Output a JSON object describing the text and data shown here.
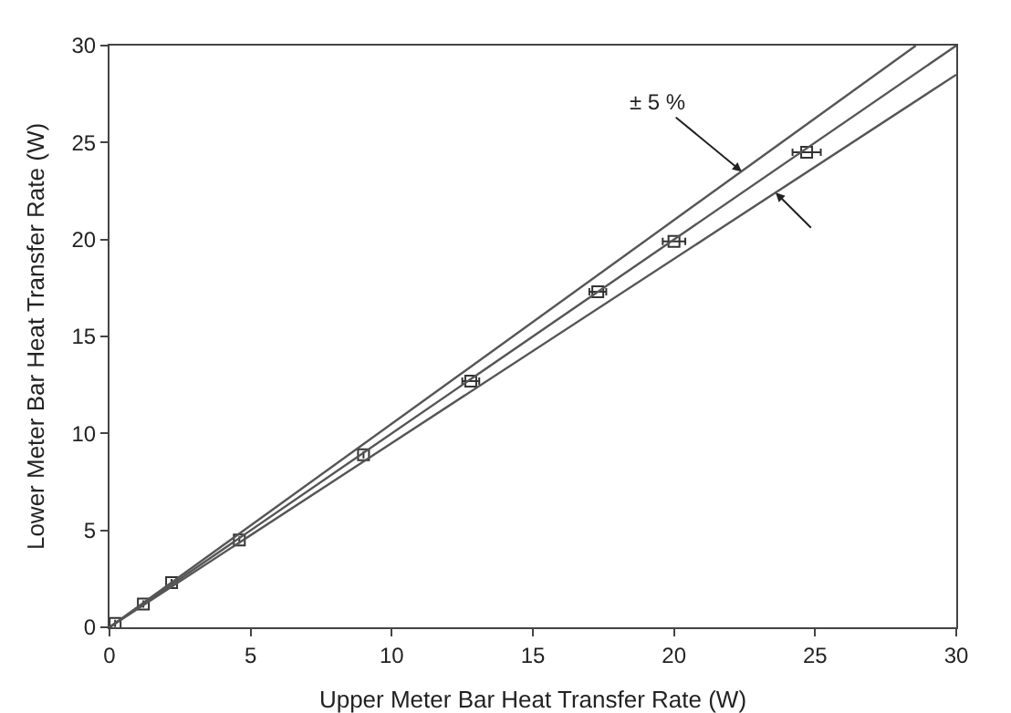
{
  "chart_data": {
    "type": "scatter",
    "xlabel": "Upper Meter Bar Heat Transfer Rate (W)",
    "ylabel": "Lower Meter Bar Heat Transfer Rate (W)",
    "xlim": [
      0,
      30
    ],
    "ylim": [
      0,
      30
    ],
    "xticks": [
      0,
      5,
      10,
      15,
      20,
      25,
      30
    ],
    "yticks": [
      0,
      5,
      10,
      15,
      20,
      25,
      30
    ],
    "grid": false,
    "legend": false,
    "series": [
      {
        "marker": "square",
        "color": "#333333",
        "x": [
          0.2,
          1.2,
          2.2,
          4.6,
          9.0,
          12.8,
          17.3,
          20.0,
          24.7
        ],
        "values": [
          0.2,
          1.2,
          2.3,
          4.5,
          8.9,
          12.7,
          17.3,
          19.9,
          24.5
        ],
        "xerrors": [
          null,
          null,
          null,
          null,
          null,
          0.3,
          0.3,
          0.4,
          0.5
        ]
      },
      {
        "type": "line",
        "marker": "none",
        "color": "#555555",
        "x": [
          0,
          30
        ],
        "values": [
          0,
          30
        ]
      },
      {
        "type": "line",
        "marker": "none",
        "color": "#555555",
        "x": [
          0,
          28.57
        ],
        "values": [
          0,
          30
        ]
      },
      {
        "type": "line",
        "marker": "none",
        "color": "#555555",
        "x": [
          0,
          30
        ],
        "values": [
          0,
          28.5
        ]
      }
    ],
    "annotations": [
      {
        "text": "± 5 %",
        "x": 22.4,
        "y": 23.5
      }
    ]
  }
}
